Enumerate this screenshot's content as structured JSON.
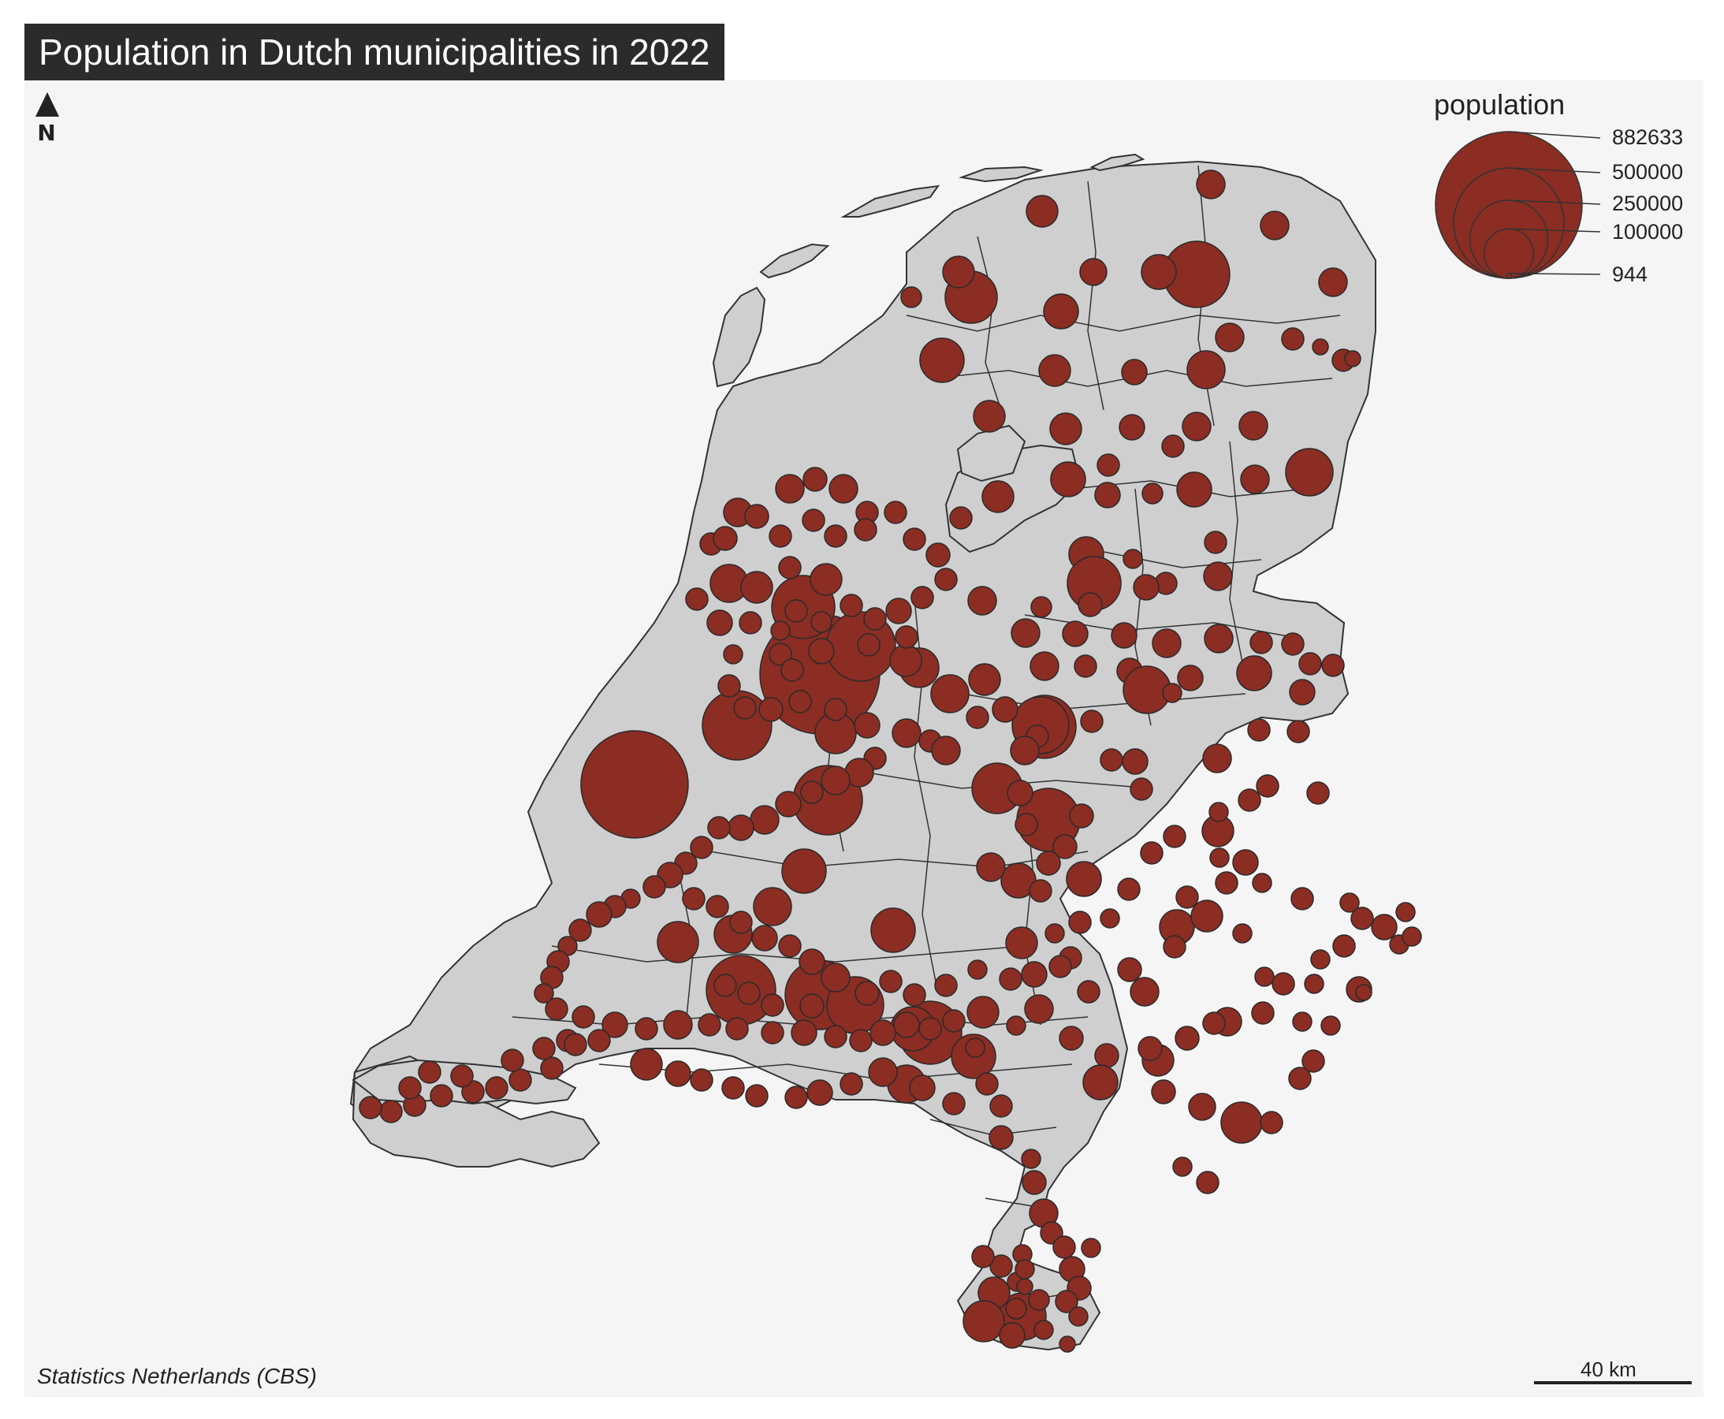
{
  "title": "Population in Dutch municipalities in 2022",
  "credit": "Statistics Netherlands (CBS)",
  "north_arrow": {
    "label": "N"
  },
  "scale_bar": {
    "label": "40 km"
  },
  "legend": {
    "title": "population",
    "entries": [
      {
        "label": "882633",
        "value": 882633
      },
      {
        "label": "500000",
        "value": 500000
      },
      {
        "label": "250000",
        "value": 250000
      },
      {
        "label": "100000",
        "value": 100000
      },
      {
        "label": "944",
        "value": 944
      }
    ]
  },
  "colors": {
    "background": "#f5f5f5",
    "land": "#cfcfcf",
    "border": "#333333",
    "bubble": "#8b2d23",
    "title_bg": "#2b2b2b",
    "title_text": "#ffffff"
  },
  "map": {
    "type": "proportional-symbol map",
    "symbol": "circle sized by population",
    "largest_bubbles": [
      {
        "population": 882633
      },
      {
        "population": 651000
      },
      {
        "population": 552000
      },
      {
        "population": 361000
      }
    ]
  }
}
